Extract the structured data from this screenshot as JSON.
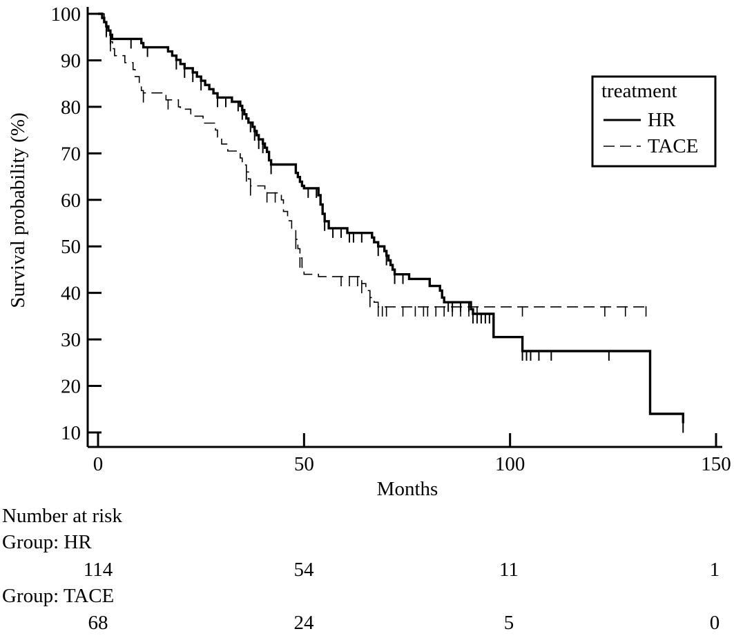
{
  "chart_data": {
    "type": "line",
    "title": "",
    "xlabel": "Months",
    "ylabel": "Survival probability (%)",
    "xlim": [
      0,
      150
    ],
    "ylim": [
      10,
      100
    ],
    "xticks": [
      0,
      50,
      100,
      150
    ],
    "yticks": [
      10,
      20,
      30,
      40,
      50,
      60,
      70,
      80,
      90,
      100
    ],
    "grid": false,
    "step": true,
    "legend": {
      "title": "treatment",
      "position": "top-right"
    },
    "series": [
      {
        "name": "HR",
        "style": "solid",
        "points": [
          [
            0,
            100
          ],
          [
            0.8,
            100
          ],
          [
            1,
            99.1
          ],
          [
            1.5,
            98.2
          ],
          [
            2,
            97.3
          ],
          [
            2.5,
            96.4
          ],
          [
            3,
            95.5
          ],
          [
            3.4,
            94.6
          ],
          [
            10,
            94.6
          ],
          [
            10.5,
            93.7
          ],
          [
            11,
            92.8
          ],
          [
            16.5,
            92.8
          ],
          [
            17,
            91.9
          ],
          [
            18,
            91
          ],
          [
            19,
            90.1
          ],
          [
            20,
            89.2
          ],
          [
            21,
            88.3
          ],
          [
            22,
            88.3
          ],
          [
            23,
            87.4
          ],
          [
            24,
            86.5
          ],
          [
            25,
            85.6
          ],
          [
            26,
            84.7
          ],
          [
            27,
            83.8
          ],
          [
            28,
            82.9
          ],
          [
            29,
            82
          ],
          [
            32,
            82
          ],
          [
            32.5,
            81.1
          ],
          [
            34,
            81.1
          ],
          [
            34.5,
            80.2
          ],
          [
            35,
            79.3
          ],
          [
            35.5,
            78.4
          ],
          [
            36,
            77.5
          ],
          [
            36.5,
            76.6
          ],
          [
            37,
            76.6
          ],
          [
            37.5,
            75.7
          ],
          [
            38,
            74.8
          ],
          [
            38.5,
            73.9
          ],
          [
            39,
            73
          ],
          [
            40,
            72.1
          ],
          [
            40.5,
            71.2
          ],
          [
            41,
            70.3
          ],
          [
            41.5,
            68.5
          ],
          [
            42,
            67.6
          ],
          [
            47.5,
            67.6
          ],
          [
            48,
            65.8
          ],
          [
            48.5,
            64.9
          ],
          [
            49,
            63.9
          ],
          [
            49.5,
            63
          ],
          [
            50,
            62.5
          ],
          [
            52,
            62.5
          ],
          [
            53,
            62.5
          ],
          [
            53.5,
            61
          ],
          [
            54,
            59
          ],
          [
            54.5,
            57
          ],
          [
            55,
            55.4
          ],
          [
            56,
            53.9
          ],
          [
            60,
            53.9
          ],
          [
            60.5,
            52.9
          ],
          [
            66,
            52.9
          ],
          [
            66.5,
            51.9
          ],
          [
            67,
            50.9
          ],
          [
            68,
            50
          ],
          [
            69,
            50
          ],
          [
            69.5,
            49
          ],
          [
            70,
            48
          ],
          [
            70.5,
            47
          ],
          [
            71,
            46
          ],
          [
            71.5,
            45
          ],
          [
            72,
            44
          ],
          [
            75,
            44
          ],
          [
            75.5,
            43
          ],
          [
            80,
            43
          ],
          [
            80.5,
            41.5
          ],
          [
            82,
            41.5
          ],
          [
            83,
            40.5
          ],
          [
            83.5,
            39
          ],
          [
            84,
            38
          ],
          [
            90,
            38
          ],
          [
            90.5,
            36.5
          ],
          [
            91,
            35.5
          ],
          [
            95.5,
            35.5
          ],
          [
            96,
            30.5
          ],
          [
            102.5,
            30.5
          ],
          [
            103,
            27.5
          ],
          [
            133.5,
            27.5
          ],
          [
            134,
            14
          ],
          [
            142,
            14
          ],
          [
            142,
            12
          ]
        ],
        "censor_x": [
          2,
          3,
          8,
          12,
          19,
          21,
          23,
          25,
          29,
          31,
          34,
          35,
          37,
          38,
          39,
          40,
          42,
          51,
          53,
          55,
          57,
          59,
          61,
          62,
          64,
          68,
          70,
          72,
          74,
          85,
          86,
          88,
          90,
          91,
          92,
          93,
          94,
          95,
          103,
          104,
          105,
          107,
          110,
          124,
          142
        ]
      },
      {
        "name": "TACE",
        "style": "dashed",
        "points": [
          [
            0,
            100
          ],
          [
            1,
            100
          ],
          [
            1.5,
            98.5
          ],
          [
            2,
            97
          ],
          [
            2.5,
            95.5
          ],
          [
            3,
            94
          ],
          [
            3.5,
            92.5
          ],
          [
            4,
            91
          ],
          [
            6,
            91
          ],
          [
            6.5,
            89.5
          ],
          [
            8,
            89.5
          ],
          [
            8.5,
            88
          ],
          [
            9,
            86.5
          ],
          [
            10,
            85
          ],
          [
            10.5,
            83.5
          ],
          [
            11,
            83
          ],
          [
            16,
            83
          ],
          [
            16.5,
            81.5
          ],
          [
            19,
            81.5
          ],
          [
            19.5,
            80
          ],
          [
            20,
            79.5
          ],
          [
            22,
            79.5
          ],
          [
            22.5,
            78
          ],
          [
            25,
            78
          ],
          [
            25.5,
            76.5
          ],
          [
            28,
            76.5
          ],
          [
            28.5,
            75
          ],
          [
            29,
            73.5
          ],
          [
            30,
            72
          ],
          [
            31,
            72
          ],
          [
            31.5,
            70.5
          ],
          [
            34,
            70.5
          ],
          [
            34.5,
            69
          ],
          [
            35,
            67.5
          ],
          [
            36,
            66
          ],
          [
            36.5,
            64.5
          ],
          [
            37,
            63
          ],
          [
            40,
            63
          ],
          [
            40.5,
            61.5
          ],
          [
            44,
            61.5
          ],
          [
            44.5,
            60
          ],
          [
            45,
            57.5
          ],
          [
            46,
            55.5
          ],
          [
            47,
            53.5
          ],
          [
            48,
            51.5
          ],
          [
            48.5,
            49.5
          ],
          [
            49,
            47.5
          ],
          [
            49.5,
            45.5
          ],
          [
            50,
            44
          ],
          [
            53,
            44
          ],
          [
            53.5,
            43.5
          ],
          [
            55,
            43.5
          ],
          [
            60,
            43.5
          ],
          [
            63,
            43.5
          ],
          [
            64,
            42
          ],
          [
            65,
            40.5
          ],
          [
            66,
            39
          ],
          [
            67,
            38
          ],
          [
            68,
            37
          ],
          [
            70,
            37
          ],
          [
            78,
            37
          ],
          [
            133.5,
            37
          ]
        ],
        "censor_x": [
          2,
          3,
          11,
          17,
          36,
          37,
          41,
          43,
          48,
          49,
          59,
          61,
          63,
          64,
          66,
          68,
          69,
          70,
          74,
          77,
          79,
          80,
          82,
          84,
          86,
          88,
          90,
          92,
          103,
          123,
          128,
          133
        ]
      }
    ],
    "risk_table": {
      "header": "Number at risk",
      "time_points": [
        0,
        50,
        100,
        150
      ],
      "groups": [
        {
          "label": "Group: HR",
          "counts": [
            "114",
            "54",
            "11",
            "1"
          ]
        },
        {
          "label": "Group: TACE",
          "counts": [
            "68",
            "24",
            "5",
            "0"
          ]
        }
      ]
    }
  }
}
